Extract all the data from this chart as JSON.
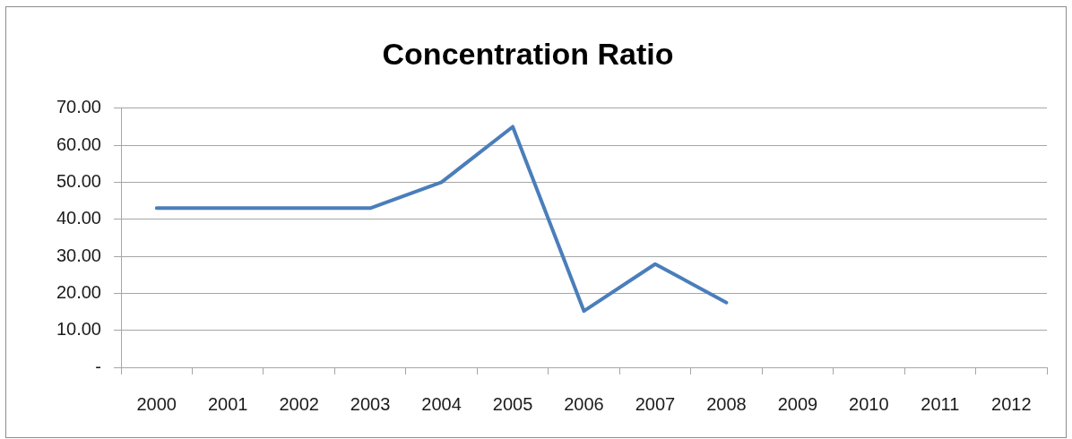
{
  "chart_data": {
    "type": "line",
    "title": "Concentration Ratio",
    "categories": [
      "2000",
      "2001",
      "2002",
      "2003",
      "2004",
      "2005",
      "2006",
      "2007",
      "2008",
      "2009",
      "2010",
      "2011",
      "2012"
    ],
    "series": [
      {
        "color": "#4a7ebb",
        "values": [
          43,
          43,
          43,
          43,
          50,
          65,
          15.2,
          27.9,
          17.5,
          null,
          null,
          null,
          null
        ]
      }
    ],
    "ylim": [
      0,
      70
    ],
    "yticks": [
      {
        "value": 0,
        "label": "-"
      },
      {
        "value": 10,
        "label": "10.00"
      },
      {
        "value": 20,
        "label": "20.00"
      },
      {
        "value": 30,
        "label": "30.00"
      },
      {
        "value": 40,
        "label": "40.00"
      },
      {
        "value": 50,
        "label": "50.00"
      },
      {
        "value": 60,
        "label": "60.00"
      },
      {
        "value": 70,
        "label": "70.00"
      }
    ],
    "grid": "y",
    "marker": "none"
  }
}
